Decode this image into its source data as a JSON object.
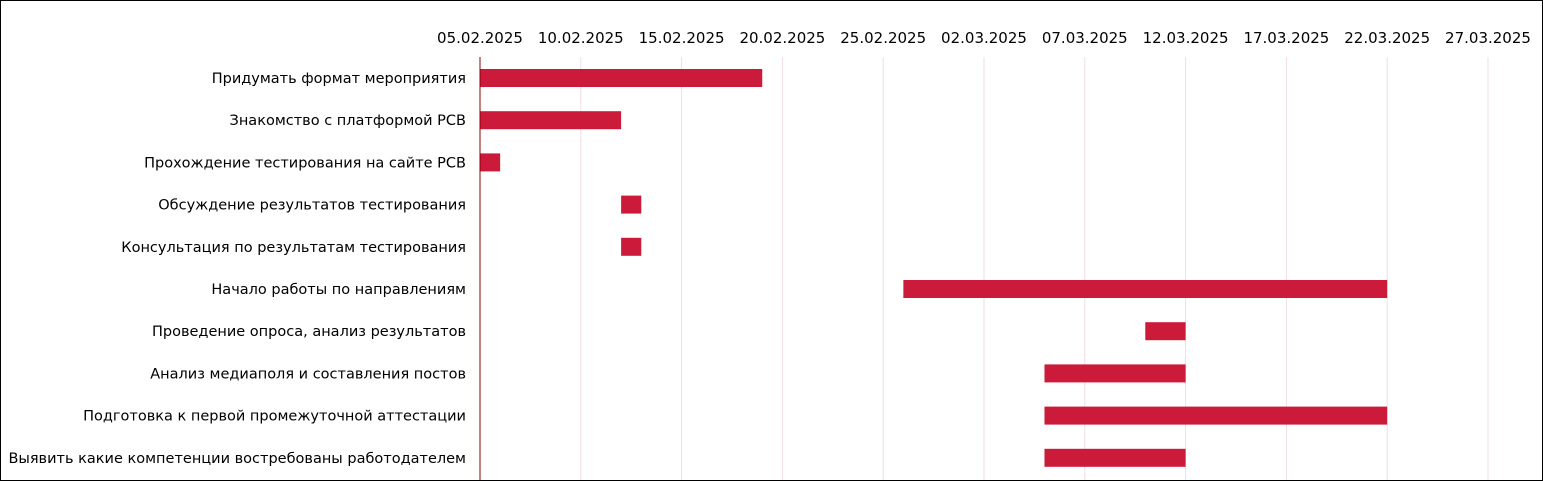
{
  "chart_data": {
    "type": "bar",
    "orientation": "horizontal-gantt",
    "x_axis": {
      "min": "2025-02-05",
      "max": "2025-03-27",
      "ticks": [
        "05.02.2025",
        "10.02.2025",
        "15.02.2025",
        "20.02.2025",
        "25.02.2025",
        "02.03.2025",
        "07.03.2025",
        "12.03.2025",
        "17.03.2025",
        "22.03.2025",
        "27.03.2025"
      ],
      "tick_position": "top"
    },
    "grid": true,
    "bar_color": "#cc1a3b",
    "axis_line_color": "#8b0000",
    "grid_color": "#f2dde3",
    "tasks": [
      {
        "label": "Придумать формат мероприятия",
        "start": "2025-02-05",
        "end": "2025-02-19"
      },
      {
        "label": "Знакомство с платформой РСВ",
        "start": "2025-02-05",
        "end": "2025-02-12"
      },
      {
        "label": "Прохождение тестирования на сайте РСВ",
        "start": "2025-02-05",
        "end": "2025-02-06"
      },
      {
        "label": "Обсуждение результатов тестирования ",
        "start": "2025-02-12",
        "end": "2025-02-13"
      },
      {
        "label": "Консультация по результатам тестирования ",
        "start": "2025-02-12",
        "end": "2025-02-13"
      },
      {
        "label": "Начало работы по направлениям",
        "start": "2025-02-26",
        "end": "2025-03-22"
      },
      {
        "label": "Проведение опроса, анализ результатов",
        "start": "2025-03-10",
        "end": "2025-03-12"
      },
      {
        "label": "Анализ медиаполя и составления постов",
        "start": "2025-03-05",
        "end": "2025-03-12"
      },
      {
        "label": "Подготовка к первой промежуточной аттестации",
        "start": "2025-03-05",
        "end": "2025-03-22"
      },
      {
        "label": "Выявить какие компетенции востребованы работодателем",
        "start": "2025-03-05",
        "end": "2025-03-12"
      }
    ]
  }
}
